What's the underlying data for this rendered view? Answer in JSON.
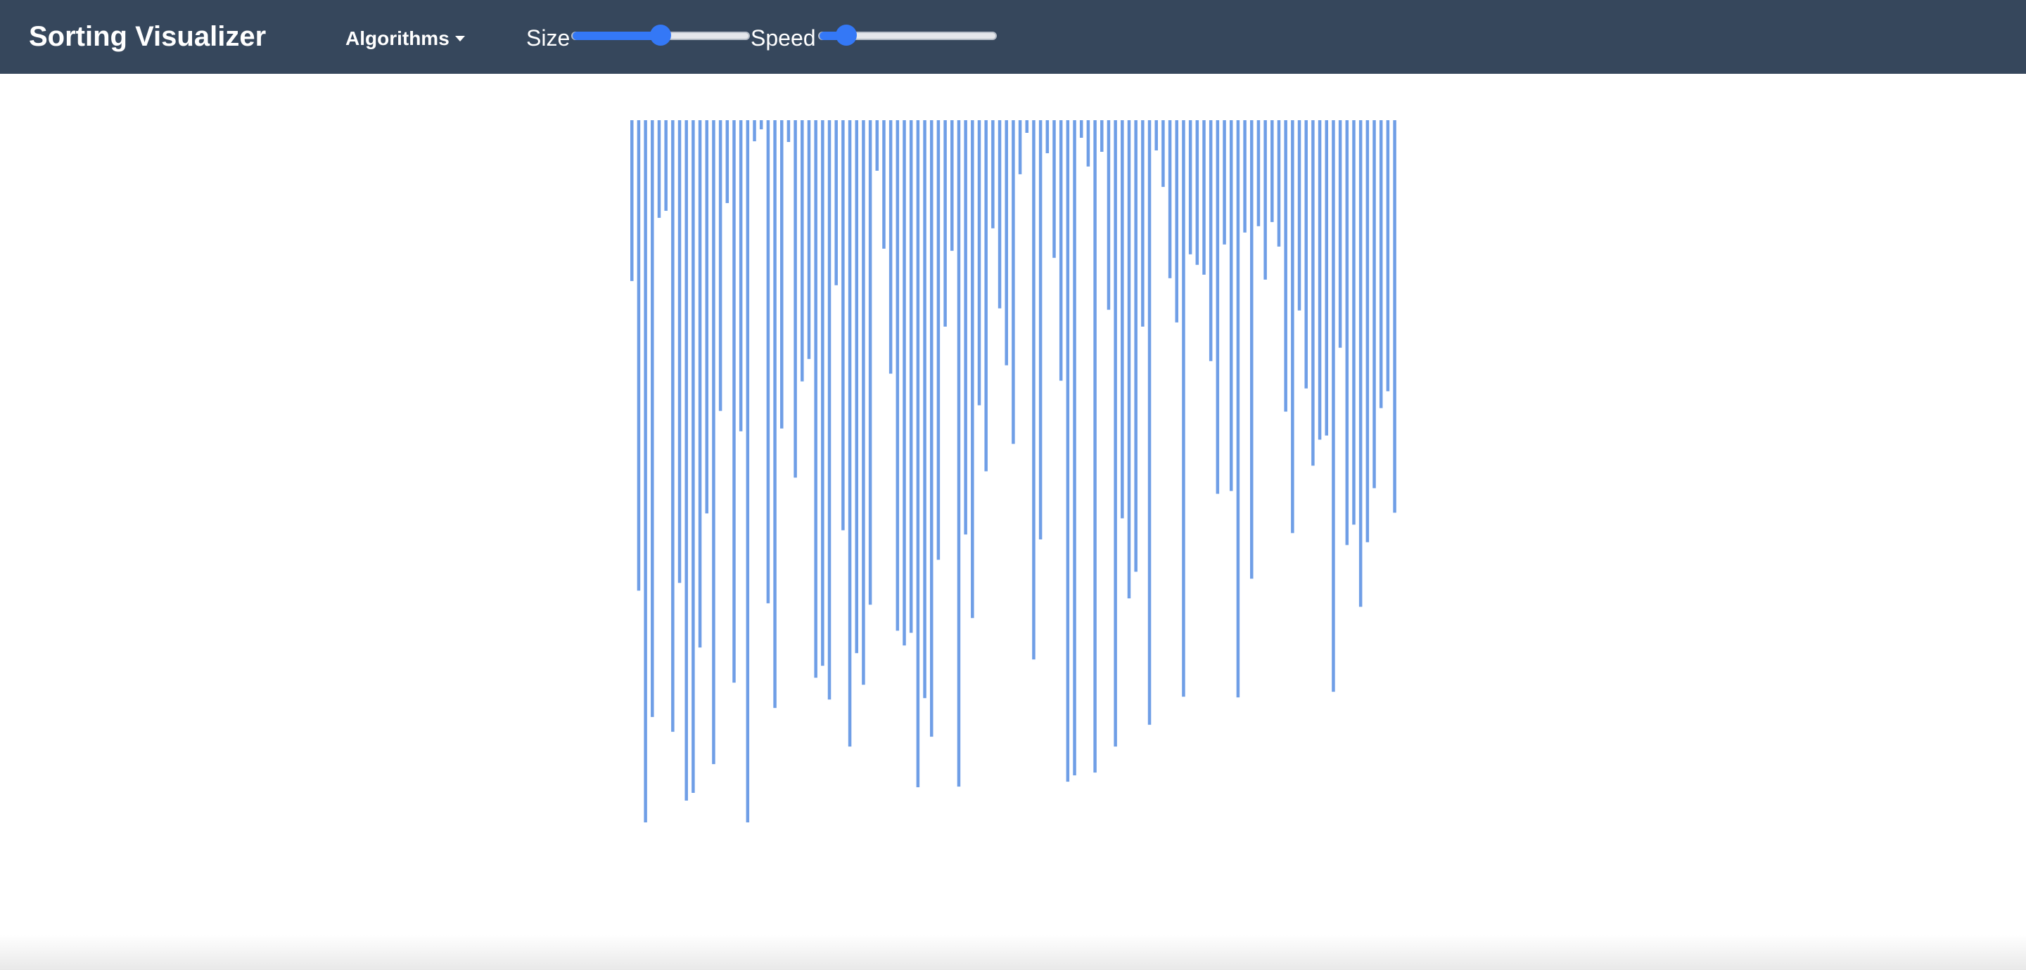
{
  "navbar": {
    "brand": "Sorting Visualizer",
    "algorithms_label": "Algorithms",
    "size_label": "Size",
    "speed_label": "Speed",
    "size_value": 0.5,
    "speed_value": 0.15
  },
  "colors": {
    "navbar_bg": "#36475c",
    "bar": "#6f9ee6",
    "slider_accent": "#3478f6"
  },
  "chart_data": {
    "type": "bar",
    "orientation": "hanging-from-top",
    "ylim": [
      0,
      1000
    ],
    "values": [
      229,
      670,
      1000,
      850,
      139,
      129,
      871,
      659,
      969,
      958,
      751,
      560,
      917,
      414,
      118,
      801,
      443,
      1000,
      30,
      13,
      688,
      837,
      439,
      31,
      509,
      372,
      340,
      794,
      777,
      825,
      235,
      584,
      892,
      759,
      804,
      690,
      72,
      183,
      361,
      727,
      748,
      730,
      950,
      823,
      878,
      626,
      294,
      186,
      949,
      590,
      709,
      406,
      500,
      154,
      268,
      349,
      461,
      77,
      18,
      768,
      597,
      47,
      196,
      371,
      942,
      933,
      25,
      66,
      929,
      45,
      270,
      892,
      567,
      681,
      643,
      294,
      861,
      43,
      95,
      225,
      288,
      821,
      191,
      206,
      220,
      343,
      532,
      177,
      528,
      822,
      160,
      653,
      151,
      227,
      145,
      180,
      415,
      588,
      271,
      382,
      492,
      455,
      449,
      814,
      324,
      605,
      576,
      693,
      601,
      524,
      410,
      386,
      559
    ]
  }
}
